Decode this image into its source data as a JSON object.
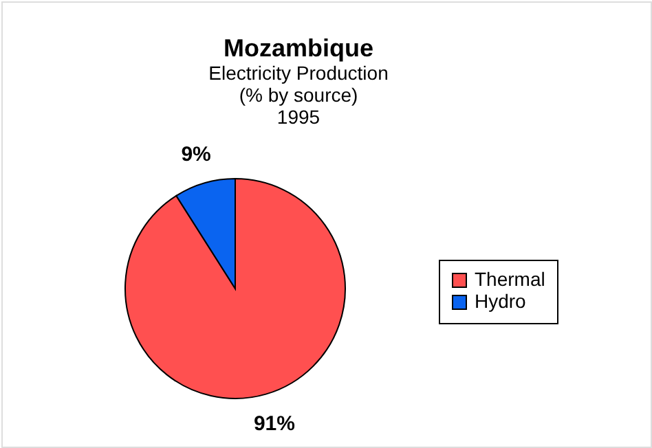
{
  "chart_data": {
    "type": "pie",
    "title": "Mozambique",
    "subtitle": "Electricity Production\n(% by source)\n1995",
    "categories": [
      "Thermal",
      "Hydro"
    ],
    "values": [
      91,
      9
    ],
    "colors": [
      "#ff5050",
      "#0a64f0"
    ],
    "value_labels": [
      "91%",
      "9%"
    ],
    "legend": "right"
  }
}
